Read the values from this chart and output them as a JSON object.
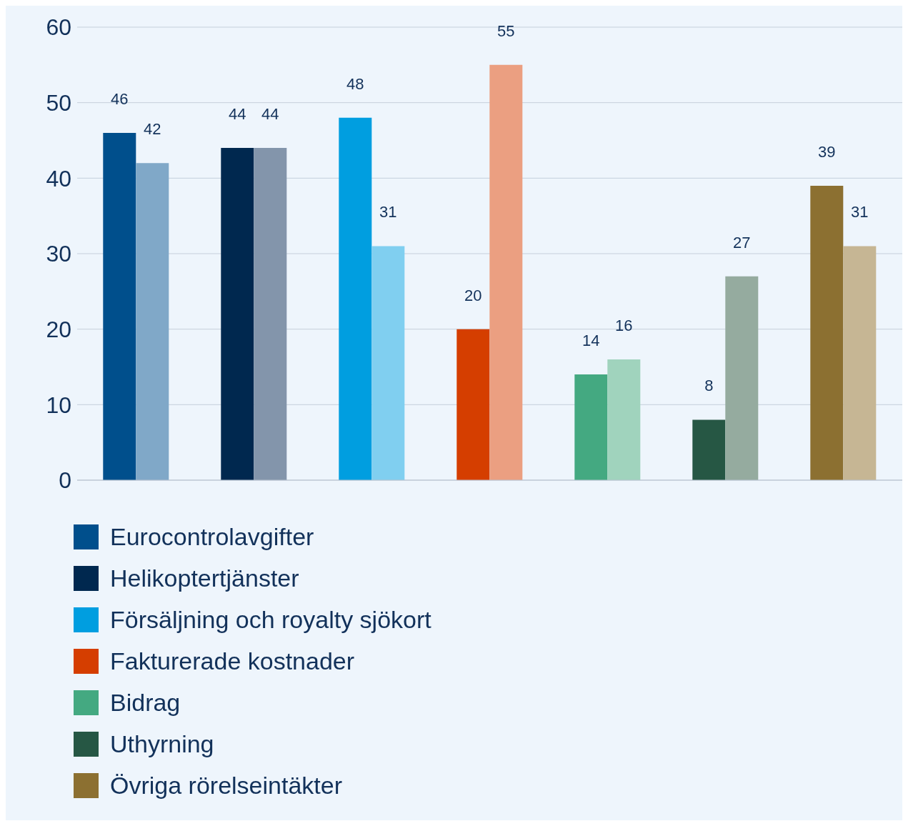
{
  "chart_data": {
    "type": "bar",
    "categories": [
      null,
      null,
      null,
      null,
      null,
      null,
      null
    ],
    "series": [
      {
        "name": "Eurocontrolavgifter",
        "color": "#004f8c",
        "values": [
          46,
          null,
          null,
          null,
          null,
          null,
          null
        ]
      },
      {
        "color": "#80a8c8",
        "values": [
          42,
          null,
          null,
          null,
          null,
          null,
          null
        ]
      },
      {
        "name": "Helikoptertjänster",
        "color": "#00284f",
        "values": [
          null,
          44,
          null,
          null,
          null,
          null,
          null
        ]
      },
      {
        "color": "#8395ab",
        "values": [
          null,
          44,
          null,
          null,
          null,
          null,
          null
        ]
      },
      {
        "name": "Försäljning och royalty sjökort",
        "color": "#009ee0",
        "values": [
          null,
          null,
          48,
          null,
          null,
          null,
          null
        ]
      },
      {
        "color": "#80cff0",
        "values": [
          null,
          null,
          31,
          null,
          null,
          null,
          null
        ]
      },
      {
        "name": "Fakturerade kostnader",
        "color": "#d53e00",
        "values": [
          null,
          null,
          null,
          20,
          null,
          null,
          null
        ]
      },
      {
        "color": "#eb9f81",
        "values": [
          null,
          null,
          null,
          55,
          null,
          null,
          null
        ]
      },
      {
        "name": "Bidrag",
        "color": "#44a981",
        "values": [
          null,
          null,
          null,
          null,
          14,
          null,
          null
        ]
      },
      {
        "color": "#a0d3bd",
        "values": [
          null,
          null,
          null,
          null,
          16,
          null,
          null
        ]
      },
      {
        "name": "Uthyrning",
        "color": "#265744",
        "values": [
          null,
          null,
          null,
          null,
          null,
          8,
          null
        ]
      },
      {
        "color": "#95ab9f",
        "values": [
          null,
          null,
          null,
          null,
          null,
          27,
          null
        ]
      },
      {
        "name": "Övriga rörelseintäkter",
        "color": "#8c7031",
        "values": [
          null,
          null,
          null,
          null,
          null,
          null,
          39
        ]
      },
      {
        "color": "#c6b694",
        "values": [
          null,
          null,
          null,
          null,
          null,
          null,
          31
        ]
      }
    ],
    "ylim": [
      0,
      60
    ],
    "yticks": [
      0,
      10,
      20,
      30,
      40,
      50,
      60
    ],
    "grid": "y",
    "data_labels": true,
    "tick_labels": "y",
    "legend": "bottom left"
  }
}
